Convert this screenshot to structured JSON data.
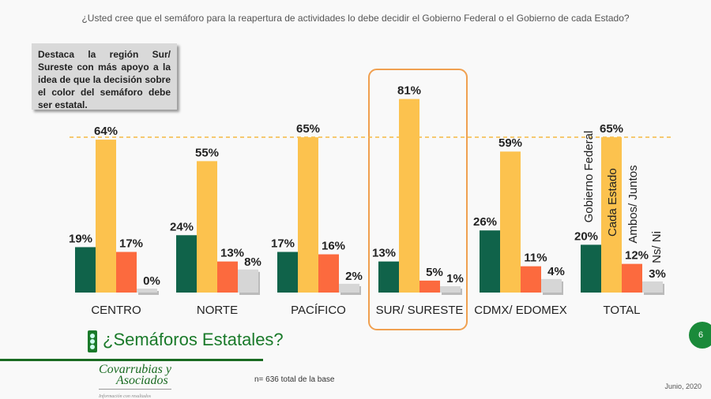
{
  "title": "¿Usted cree que el semáforo para la reapertura de actividades lo debe decidir el Gobierno Federal o el Gobierno de cada Estado?",
  "note": "Destaca la región Sur/ Sureste con más apoyo a la idea de que la decisión sobre el color del semáforo debe ser estatal.",
  "subtitle": "¿Semáforos Estatales?",
  "logo": {
    "line1": "Covarrubias y",
    "line2": "Asociados",
    "tagline": "Información con resultados"
  },
  "base_note": "n= 636 total de la base",
  "page_number": "6",
  "date": "Junio, 2020",
  "chart_data": {
    "type": "bar",
    "categories": [
      "CENTRO",
      "NORTE",
      "PACÍFICO",
      "SUR/ SURESTE",
      "CDMX/ EDOMEX",
      "TOTAL"
    ],
    "series": [
      {
        "name": "Gobierno Federal",
        "color": "#10634a",
        "values": [
          19,
          24,
          17,
          13,
          26,
          20
        ]
      },
      {
        "name": "Cada Estado",
        "color": "#fcc24e",
        "values": [
          64,
          55,
          65,
          81,
          59,
          65
        ]
      },
      {
        "name": "Ambos/ Juntos",
        "color": "#fc6a3e",
        "values": [
          17,
          13,
          16,
          5,
          11,
          12
        ]
      },
      {
        "name": "Ns/ Ni",
        "color": "#d6d6d6",
        "values": [
          0,
          8,
          2,
          1,
          4,
          3
        ]
      }
    ],
    "value_suffix": "%",
    "reference_line": 65,
    "highlight_category": "SUR/ SURESTE",
    "ylim": [
      0,
      81
    ]
  }
}
